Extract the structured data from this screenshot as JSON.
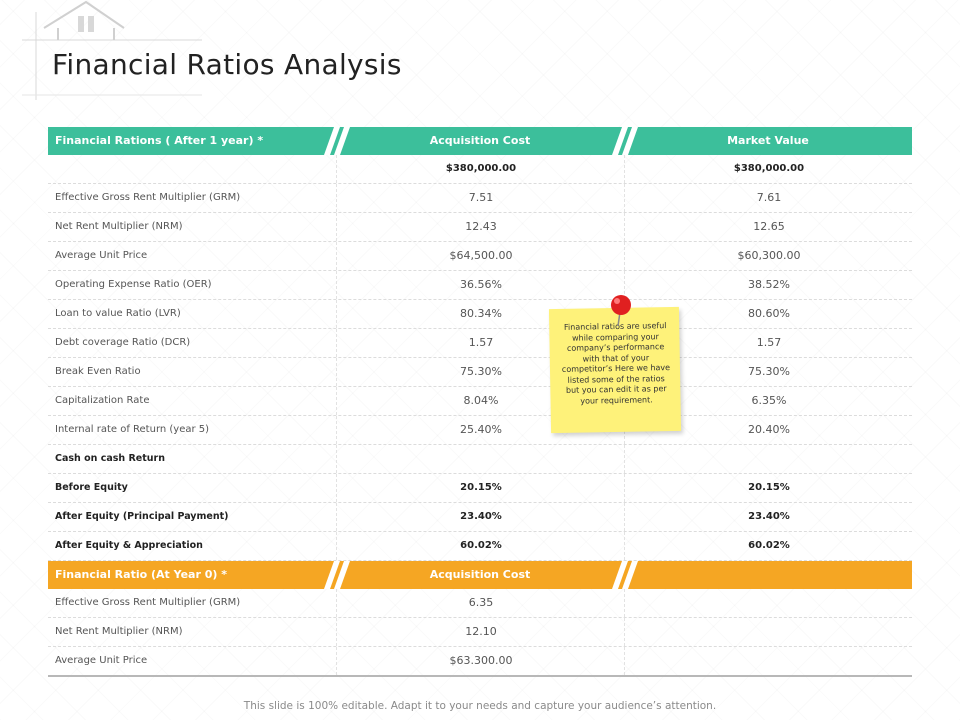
{
  "slide": {
    "title": "Financial Ratios Analysis",
    "footer": "This slide is 100% editable. Adapt it to your needs and capture your audience’s attention."
  },
  "table1": {
    "header": {
      "col1": "Financial Rations ( After 1 year) *",
      "col2": "Acquisition Cost",
      "col3": "Market Value",
      "color": "#3cbf9b"
    },
    "total": {
      "c1": "",
      "c2": "$380,000.00",
      "c3": "$380,000.00"
    },
    "rows": [
      {
        "c1": "Effective Gross Rent Multiplier (GRM)",
        "c2": "7.51",
        "c3": "7.61"
      },
      {
        "c1": "Net Rent Multiplier (NRM)",
        "c2": "12.43",
        "c3": "12.65"
      },
      {
        "c1": "Average Unit Price",
        "c2": "$64,500.00",
        "c3": "$60,300.00"
      },
      {
        "c1": "Operating Expense Ratio (OER)",
        "c2": "36.56%",
        "c3": "38.52%"
      },
      {
        "c1": "Loan to value Ratio (LVR)",
        "c2": "80.34%",
        "c3": "80.60%"
      },
      {
        "c1": "Debt coverage Ratio (DCR)",
        "c2": "1.57",
        "c3": "1.57"
      },
      {
        "c1": "Break Even Ratio",
        "c2": "75.30%",
        "c3": "75.30%"
      },
      {
        "c1": "Capitalization Rate",
        "c2": "8.04%",
        "c3": "6.35%"
      },
      {
        "c1": "Internal rate of Return (year 5)",
        "c2": "25.40%",
        "c3": "20.40%"
      }
    ],
    "cash_section": "Cash on cash Return",
    "bold_rows": [
      {
        "c1": "Before Equity",
        "c2": "20.15%",
        "c3": "20.15%"
      },
      {
        "c1": "After Equity (Principal Payment)",
        "c2": "23.40%",
        "c3": "23.40%"
      },
      {
        "c1": "After Equity & Appreciation",
        "c2": "60.02%",
        "c3": "60.02%"
      }
    ]
  },
  "table2": {
    "header": {
      "col1": "Financial Ratio (At Year 0) *",
      "col2": "Acquisition Cost",
      "col3": "",
      "color": "#f5a623"
    },
    "rows": [
      {
        "c1": "Effective Gross Rent Multiplier (GRM)",
        "c2": "6.35",
        "c3": ""
      },
      {
        "c1": "Net Rent Multiplier (NRM)",
        "c2": "12.10",
        "c3": ""
      },
      {
        "c1": "Average Unit Price",
        "c2": "$63.300.00",
        "c3": ""
      }
    ]
  },
  "sticky_note": {
    "text": "Financial ratios are useful while comparing your company’s performance with that of your competitor’s Here we have listed some of the ratios but you can edit it as per your requirement.",
    "color": "#fef27a",
    "pin_color": "#e02020"
  }
}
